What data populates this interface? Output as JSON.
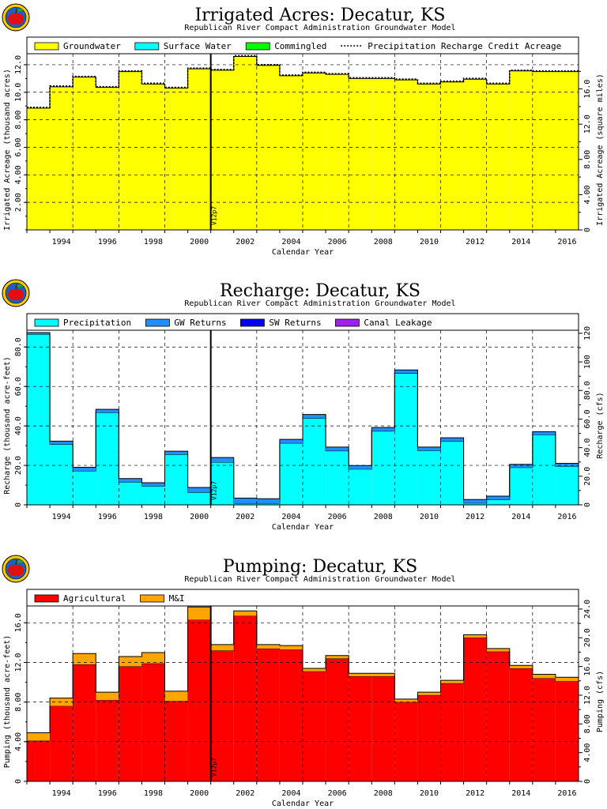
{
  "logo_icon": "apple-logo-icon",
  "chart_data": [
    {
      "type": "area",
      "title": "Irrigated Acres: Decatur, KS",
      "subtitle": "Republican River Compact Administration Groundwater Model",
      "xlabel": "Calendar Year",
      "ylabel": "Irrigated Acreage (thousand acres)",
      "ylabel_right": "Irrigated Acreage (square miles)",
      "x": [
        1993,
        1994,
        1995,
        1996,
        1997,
        1998,
        1999,
        2000,
        2001,
        2002,
        2003,
        2004,
        2005,
        2006,
        2007,
        2008,
        2009,
        2010,
        2011,
        2012,
        2013,
        2014,
        2015,
        2016
      ],
      "xlim": [
        1992.5,
        2016.5
      ],
      "x_ticks": [
        "1994",
        "1996",
        "1998",
        "2000",
        "2002",
        "2004",
        "2006",
        "2008",
        "2010",
        "2012",
        "2014",
        "2016"
      ],
      "ylim": [
        0,
        12.8
      ],
      "y_ticks": [
        "2.00",
        "4.00",
        "6.00",
        "8.00",
        "10.0",
        "12.0"
      ],
      "y_right_ticks": [
        "0",
        "4.00",
        "8.00",
        "12.0",
        "16.0"
      ],
      "series": [
        {
          "name": "Groundwater",
          "color": "#ffff00",
          "values": [
            8.85,
            10.4,
            11.1,
            10.35,
            11.5,
            10.6,
            10.3,
            11.7,
            11.6,
            12.6,
            11.95,
            11.2,
            11.4,
            11.3,
            11.0,
            11.0,
            10.9,
            10.6,
            10.75,
            10.95,
            10.6,
            11.55,
            11.5,
            11.5
          ]
        },
        {
          "name": "Surface Water",
          "color": "#00ffff",
          "values": [
            0,
            0,
            0,
            0,
            0,
            0,
            0,
            0,
            0,
            0,
            0,
            0,
            0,
            0,
            0,
            0,
            0,
            0,
            0,
            0,
            0,
            0,
            0,
            0
          ]
        },
        {
          "name": "Commingled",
          "color": "#00ff00",
          "values": [
            0,
            0,
            0,
            0,
            0,
            0,
            0,
            0,
            0,
            0,
            0,
            0,
            0,
            0,
            0,
            0,
            0,
            0,
            0,
            0,
            0,
            0,
            0,
            0
          ]
        }
      ],
      "dashed_line": {
        "name": "Precipitation Recharge Credit Acreage",
        "values": [
          8.85,
          10.4,
          11.1,
          10.35,
          11.5,
          10.6,
          10.3,
          11.7,
          11.6,
          12.6,
          11.95,
          11.2,
          11.4,
          11.3,
          11.0,
          11.0,
          10.9,
          10.6,
          10.75,
          10.95,
          10.6,
          11.55,
          11.5,
          11.5
        ]
      },
      "marker": {
        "label": "V12p7",
        "x": 2000.5
      },
      "grid": true,
      "legend_position": "top"
    },
    {
      "type": "area",
      "title": "Recharge: Decatur, KS",
      "subtitle": "Republican River Compact Administration Groundwater Model",
      "xlabel": "Calendar Year",
      "ylabel": "Recharge (thousand acre-feet)",
      "ylabel_right": "Recharge (cfs)",
      "x": [
        1993,
        1994,
        1995,
        1996,
        1997,
        1998,
        1999,
        2000,
        2001,
        2002,
        2003,
        2004,
        2005,
        2006,
        2007,
        2008,
        2009,
        2010,
        2011,
        2012,
        2013,
        2014,
        2015,
        2016
      ],
      "xlim": [
        1992.5,
        2016.5
      ],
      "x_ticks": [
        "1994",
        "1996",
        "1998",
        "2000",
        "2002",
        "2004",
        "2006",
        "2008",
        "2010",
        "2012",
        "2014",
        "2016"
      ],
      "ylim": [
        0,
        88.5
      ],
      "y_ticks": [
        "0",
        "20.0",
        "40.0",
        "60.0",
        "80.0"
      ],
      "y_right_ticks": [
        "0",
        "20.0",
        "40.0",
        "60.0",
        "80.0",
        "100",
        "120"
      ],
      "series": [
        {
          "name": "Precipitation",
          "color": "#00ffff",
          "values": [
            86.5,
            30.7,
            17.2,
            46.8,
            11.5,
            9.5,
            25.6,
            6.3,
            21.6,
            0.8,
            0.8,
            31.3,
            43.9,
            27.4,
            18.1,
            37.4,
            66.7,
            27.6,
            32.2,
            0.9,
            2.6,
            18.9,
            35.6,
            19.5
          ]
        },
        {
          "name": "GW Returns",
          "color": "#1e90ff",
          "values": [
            0.8,
            1.6,
            1.8,
            1.6,
            1.8,
            1.7,
            1.6,
            2.5,
            2.4,
            2.6,
            2.3,
            1.9,
            1.9,
            1.9,
            1.8,
            1.8,
            1.7,
            1.7,
            1.8,
            1.8,
            1.8,
            1.6,
            1.5,
            1.5
          ]
        },
        {
          "name": "SW Returns",
          "color": "#0000ff",
          "values": [
            0,
            0,
            0,
            0,
            0,
            0,
            0,
            0,
            0,
            0,
            0,
            0,
            0,
            0,
            0,
            0,
            0,
            0,
            0,
            0,
            0,
            0,
            0,
            0
          ]
        },
        {
          "name": "Canal Leakage",
          "color": "#a020f0",
          "values": [
            0,
            0,
            0,
            0,
            0,
            0,
            0,
            0,
            0,
            0,
            0,
            0,
            0,
            0,
            0,
            0,
            0,
            0,
            0,
            0,
            0,
            0,
            0,
            0
          ]
        }
      ],
      "marker": {
        "label": "V12p7",
        "x": 2000.5
      },
      "grid": true,
      "legend_position": "top"
    },
    {
      "type": "area",
      "title": "Pumping: Decatur, KS",
      "subtitle": "Republican River Compact Administration Groundwater Model",
      "xlabel": "Calendar Year",
      "ylabel": "Pumping (thousand acre-feet)",
      "ylabel_right": "Pumping (cfs)",
      "x": [
        1993,
        1994,
        1995,
        1996,
        1997,
        1998,
        1999,
        2000,
        2001,
        2002,
        2003,
        2004,
        2005,
        2006,
        2007,
        2008,
        2009,
        2010,
        2011,
        2012,
        2013,
        2014,
        2015,
        2016
      ],
      "xlim": [
        1992.5,
        2016.5
      ],
      "x_ticks": [
        "1994",
        "1996",
        "1998",
        "2000",
        "2002",
        "2004",
        "2006",
        "2008",
        "2010",
        "2012",
        "2014",
        "2016"
      ],
      "ylim": [
        0,
        17.7
      ],
      "y_ticks": [
        "0",
        "4.00",
        "8.00",
        "12.0",
        "16.0"
      ],
      "y_right_ticks": [
        "0",
        "4.00",
        "8.00",
        "12.0",
        "16.0",
        "20.0",
        "24.0"
      ],
      "series": [
        {
          "name": "Agricultural",
          "color": "#ff0000",
          "values": [
            4.1,
            7.6,
            11.8,
            8.2,
            11.6,
            11.9,
            8.1,
            16.3,
            13.2,
            16.7,
            13.4,
            13.3,
            11.1,
            12.4,
            10.6,
            10.6,
            8.0,
            8.7,
            9.9,
            14.5,
            13.1,
            11.4,
            10.4,
            10.1
          ]
        },
        {
          "name": "M&I",
          "color": "#ffa500",
          "values": [
            0.8,
            0.8,
            1.1,
            0.8,
            1.0,
            1.1,
            1.0,
            1.3,
            0.6,
            0.5,
            0.4,
            0.4,
            0.3,
            0.3,
            0.3,
            0.3,
            0.3,
            0.3,
            0.3,
            0.3,
            0.3,
            0.3,
            0.4,
            0.4
          ]
        }
      ],
      "marker": {
        "label": "V12p7",
        "x": 2000.5
      },
      "grid": true,
      "legend_position": "top"
    }
  ]
}
